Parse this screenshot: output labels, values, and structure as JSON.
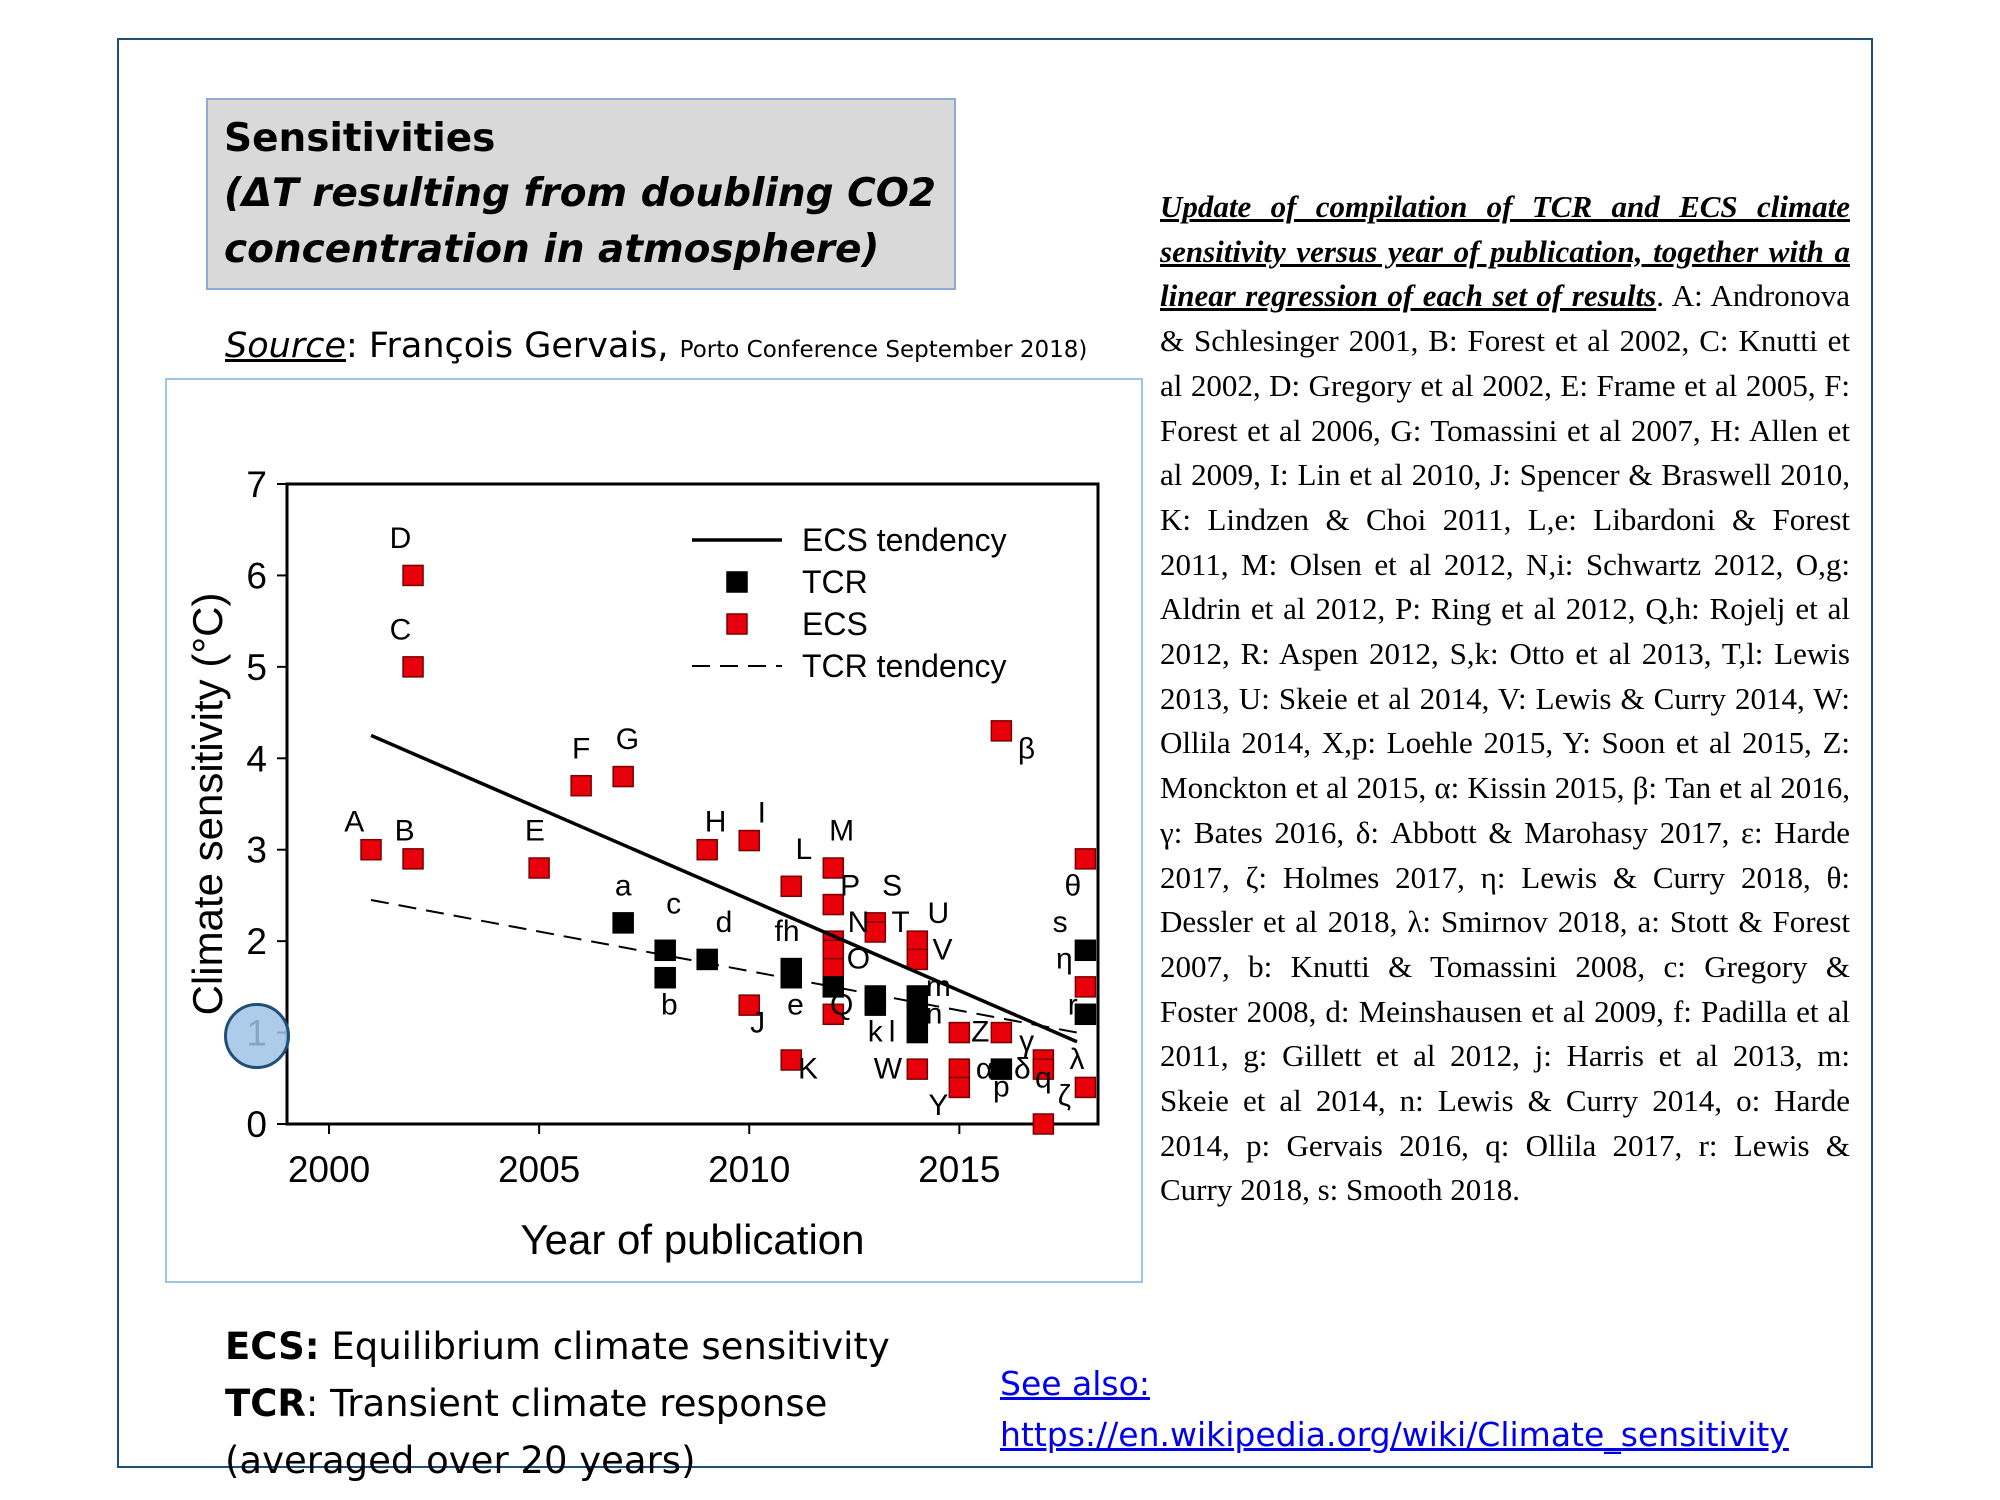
{
  "title": {
    "line1": "Sensitivities",
    "line2": "(ΔT resulting from doubling CO2",
    "line3": "concentration in atmosphere)"
  },
  "source": {
    "label": "Source",
    "author": ": François Gervais, ",
    "event": "Porto Conference September 2018)"
  },
  "definitions": {
    "ecs_abbr": "ECS:",
    "ecs_text": " Equilibrium climate sensitivity",
    "tcr_abbr": "TCR",
    "tcr_text": ": Transient climate response",
    "tcr_note": "(averaged over 20 years)"
  },
  "see_also": {
    "label": "See also:",
    "url": "https://en.wikipedia.org/wiki/Climate_sensitivity"
  },
  "caption": {
    "heading": "Update of compilation of TCR and ECS climate sensitivity versus year of publication, together with a linear regression of each set of results",
    "body": ". A: Andronova & Schlesinger 2001, B: Forest et al 2002, C: Knutti et al 2002, D: Gregory et al 2002, E: Frame et al 2005, F: Forest et al 2006, G: Tomassini et al 2007, H: Allen et al 2009, I: Lin et al 2010, J: Spencer & Braswell 2010, K: Lindzen & Choi 2011, L,e: Libardoni & Forest 2011, M: Olsen et al 2012, N,i: Schwartz 2012, O,g: Aldrin et al 2012, P: Ring et al 2012, Q,h: Rojelj et al 2012, R: Aspen 2012, S,k: Otto et al 2013, T,l: Lewis 2013, U: Skeie et al 2014, V: Lewis & Curry 2014, W: Ollila 2014, X,p: Loehle 2015, Y: Soon et al 2015, Z: Monckton et al 2015, α: Kissin 2015, β: Tan et al 2016, γ: Bates 2016, δ: Abbott & Marohasy 2017, ε: Harde 2017, ζ: Holmes 2017, η: Lewis & Curry 2018, θ: Dessler et al 2018, λ: Smirnov 2018, a: Stott & Forest 2007, b: Knutti & Tomassini 2008, c: Gregory & Foster 2008, d: Meinshausen et al 2009, f: Padilla et al 2011, g: Gillett et al 2012, j: Harris et al 2013, m: Skeie et al 2014, n: Lewis & Curry 2014, o: Harde 2014, p: Gervais 2016, q: Ollila 2017, r: Lewis & Curry 2018, s: Smooth 2018."
  },
  "colors": {
    "ecs": "#e8000b",
    "tcr": "#000000",
    "frame": "#1f4e79",
    "title_bg": "#d9d9d9",
    "callout": "#9dc3e6"
  },
  "chart_data": {
    "type": "scatter",
    "xlabel": "Year of publication",
    "ylabel": "Climate sensitivity (°C)",
    "xlim": [
      1999,
      2018.3
    ],
    "ylim": [
      0,
      7
    ],
    "xticks": [
      2000,
      2005,
      2010,
      2015
    ],
    "yticks": [
      0,
      1,
      2,
      3,
      4,
      5,
      6,
      7
    ],
    "grid": false,
    "legend_position": "top-right",
    "legend": [
      "ECS tendency",
      "TCR",
      "ECS",
      "TCR tendency"
    ],
    "series": [
      {
        "name": "ECS",
        "marker": "square",
        "points": [
          {
            "x": 2001,
            "y": 3.0
          },
          {
            "x": 2002,
            "y": 2.9
          },
          {
            "x": 2002,
            "y": 5.0
          },
          {
            "x": 2002,
            "y": 6.0
          },
          {
            "x": 2005,
            "y": 2.8
          },
          {
            "x": 2006,
            "y": 3.7
          },
          {
            "x": 2007,
            "y": 3.8
          },
          {
            "x": 2009,
            "y": 3.0
          },
          {
            "x": 2010,
            "y": 3.1
          },
          {
            "x": 2010,
            "y": 1.3
          },
          {
            "x": 2011,
            "y": 0.7
          },
          {
            "x": 2011,
            "y": 2.6
          },
          {
            "x": 2012,
            "y": 2.8
          },
          {
            "x": 2012,
            "y": 2.4
          },
          {
            "x": 2012,
            "y": 2.0
          },
          {
            "x": 2012,
            "y": 1.9
          },
          {
            "x": 2012,
            "y": 1.7
          },
          {
            "x": 2012,
            "y": 1.2
          },
          {
            "x": 2013,
            "y": 2.2
          },
          {
            "x": 2013,
            "y": 2.1
          },
          {
            "x": 2014,
            "y": 2.0
          },
          {
            "x": 2014,
            "y": 1.8
          },
          {
            "x": 2014,
            "y": 0.6
          },
          {
            "x": 2015,
            "y": 1.0
          },
          {
            "x": 2015,
            "y": 0.6
          },
          {
            "x": 2015,
            "y": 0.4
          },
          {
            "x": 2016,
            "y": 4.3
          },
          {
            "x": 2016,
            "y": 1.0
          },
          {
            "x": 2017,
            "y": 0.7
          },
          {
            "x": 2017,
            "y": 0.6
          },
          {
            "x": 2017,
            "y": 0.0
          },
          {
            "x": 2018,
            "y": 2.9
          },
          {
            "x": 2018,
            "y": 1.5
          },
          {
            "x": 2018,
            "y": 0.4
          }
        ]
      },
      {
        "name": "TCR",
        "marker": "square",
        "points": [
          {
            "x": 2007,
            "y": 2.2
          },
          {
            "x": 2008,
            "y": 1.6
          },
          {
            "x": 2008,
            "y": 1.9
          },
          {
            "x": 2009,
            "y": 1.8
          },
          {
            "x": 2011,
            "y": 1.7
          },
          {
            "x": 2011,
            "y": 1.6
          },
          {
            "x": 2012,
            "y": 1.5
          },
          {
            "x": 2013,
            "y": 1.4
          },
          {
            "x": 2013,
            "y": 1.3
          },
          {
            "x": 2014,
            "y": 1.4
          },
          {
            "x": 2014,
            "y": 1.2
          },
          {
            "x": 2014,
            "y": 1.0
          },
          {
            "x": 2016,
            "y": 0.6
          },
          {
            "x": 2018,
            "y": 1.9
          },
          {
            "x": 2018,
            "y": 1.2
          }
        ]
      },
      {
        "name": "ECS tendency",
        "style": "solid",
        "points": [
          {
            "x": 2001,
            "y": 4.25
          },
          {
            "x": 2017.8,
            "y": 0.9
          }
        ]
      },
      {
        "name": "TCR tendency",
        "style": "dashed",
        "points": [
          {
            "x": 2001,
            "y": 2.45
          },
          {
            "x": 2017.8,
            "y": 1.0
          }
        ]
      }
    ],
    "annotations": [
      {
        "text": "D",
        "x": 2001.7,
        "y": 6.3
      },
      {
        "text": "C",
        "x": 2001.7,
        "y": 5.3
      },
      {
        "text": "A",
        "x": 2000.6,
        "y": 3.2
      },
      {
        "text": "B",
        "x": 2001.8,
        "y": 3.1
      },
      {
        "text": "E",
        "x": 2004.9,
        "y": 3.1
      },
      {
        "text": "F",
        "x": 2006.0,
        "y": 4.0
      },
      {
        "text": "G",
        "x": 2007.1,
        "y": 4.1
      },
      {
        "text": "a",
        "x": 2007.0,
        "y": 2.5
      },
      {
        "text": "c",
        "x": 2008.2,
        "y": 2.3
      },
      {
        "text": "b",
        "x": 2008.1,
        "y": 1.2
      },
      {
        "text": "d",
        "x": 2009.4,
        "y": 2.1
      },
      {
        "text": "H",
        "x": 2009.2,
        "y": 3.2
      },
      {
        "text": "I",
        "x": 2010.3,
        "y": 3.3
      },
      {
        "text": "J",
        "x": 2010.2,
        "y": 1.0
      },
      {
        "text": "L",
        "x": 2011.3,
        "y": 2.9
      },
      {
        "text": "K",
        "x": 2011.4,
        "y": 0.5
      },
      {
        "text": "fh",
        "x": 2010.9,
        "y": 2.0
      },
      {
        "text": "e",
        "x": 2011.1,
        "y": 1.2
      },
      {
        "text": "M",
        "x": 2012.2,
        "y": 3.1
      },
      {
        "text": "P",
        "x": 2012.4,
        "y": 2.5
      },
      {
        "text": "N",
        "x": 2012.6,
        "y": 2.1
      },
      {
        "text": "O",
        "x": 2012.6,
        "y": 1.7
      },
      {
        "text": "Q",
        "x": 2012.2,
        "y": 1.2
      },
      {
        "text": "S",
        "x": 2013.4,
        "y": 2.5
      },
      {
        "text": "T",
        "x": 2013.6,
        "y": 2.1
      },
      {
        "text": "U",
        "x": 2014.5,
        "y": 2.2
      },
      {
        "text": "V",
        "x": 2014.6,
        "y": 1.8
      },
      {
        "text": "k",
        "x": 2013.0,
        "y": 0.9
      },
      {
        "text": "l",
        "x": 2013.4,
        "y": 0.9
      },
      {
        "text": "W",
        "x": 2013.3,
        "y": 0.5
      },
      {
        "text": "m",
        "x": 2014.5,
        "y": 1.4
      },
      {
        "text": "n",
        "x": 2014.4,
        "y": 1.1
      },
      {
        "text": "Y",
        "x": 2014.5,
        "y": 0.1
      },
      {
        "text": "Z",
        "x": 2015.5,
        "y": 0.9
      },
      {
        "text": "α",
        "x": 2015.6,
        "y": 0.5
      },
      {
        "text": "p",
        "x": 2016.0,
        "y": 0.3
      },
      {
        "text": "γ",
        "x": 2016.6,
        "y": 0.8
      },
      {
        "text": "δ",
        "x": 2016.5,
        "y": 0.5
      },
      {
        "text": "q",
        "x": 2017.0,
        "y": 0.4
      },
      {
        "text": "ζ",
        "x": 2017.5,
        "y": 0.2
      },
      {
        "text": "β",
        "x": 2016.6,
        "y": 4.0
      },
      {
        "text": "θ",
        "x": 2017.7,
        "y": 2.5
      },
      {
        "text": "s",
        "x": 2017.4,
        "y": 2.1
      },
      {
        "text": "η",
        "x": 2017.5,
        "y": 1.7
      },
      {
        "text": "r",
        "x": 2017.7,
        "y": 1.2
      },
      {
        "text": "λ",
        "x": 2017.8,
        "y": 0.6
      }
    ]
  }
}
